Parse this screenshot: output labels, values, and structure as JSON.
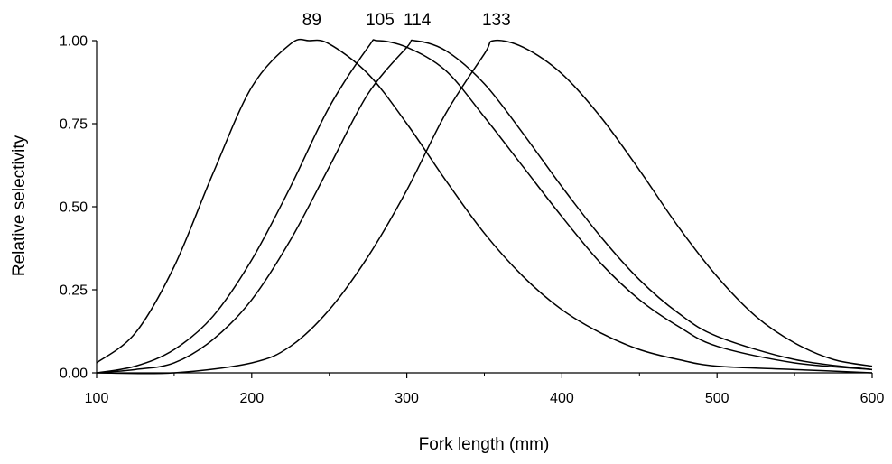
{
  "chart_data": {
    "type": "line",
    "title": "",
    "xlabel": "Fork length (mm)",
    "ylabel": "Relative selectivity",
    "xlim": [
      100,
      600
    ],
    "ylim": [
      0,
      1
    ],
    "x_ticks": [
      100,
      200,
      300,
      400,
      500,
      600
    ],
    "x_tick_labels": [
      "100",
      "200",
      "300",
      "400",
      "500",
      "600"
    ],
    "y_ticks": [
      0,
      0.25,
      0.5,
      0.75,
      1.0
    ],
    "y_tick_labels": [
      "0.00",
      "0.25",
      "0.50",
      "0.75",
      "1.00"
    ],
    "grid": false,
    "legend": "none",
    "line_color": "#000000",
    "series": [
      {
        "name": "89",
        "x": [
          100,
          125,
          150,
          175,
          200,
          225,
          237,
          250,
          275,
          300,
          325,
          350,
          375,
          400,
          425,
          450,
          475,
          500,
          550,
          600
        ],
        "y": [
          0.03,
          0.12,
          0.32,
          0.6,
          0.86,
          0.99,
          1.0,
          0.99,
          0.9,
          0.75,
          0.58,
          0.42,
          0.29,
          0.19,
          0.12,
          0.07,
          0.04,
          0.02,
          0.01,
          0.0
        ]
      },
      {
        "name": "105",
        "x": [
          100,
          125,
          150,
          175,
          200,
          225,
          250,
          275,
          281,
          300,
          325,
          350,
          375,
          400,
          425,
          450,
          475,
          500,
          550,
          600
        ],
        "y": [
          0.0,
          0.02,
          0.07,
          0.17,
          0.34,
          0.56,
          0.8,
          0.98,
          1.0,
          0.98,
          0.91,
          0.77,
          0.62,
          0.47,
          0.33,
          0.22,
          0.14,
          0.08,
          0.03,
          0.01
        ]
      },
      {
        "name": "114",
        "x": [
          100,
          125,
          150,
          175,
          200,
          225,
          250,
          275,
          300,
          305,
          325,
          350,
          375,
          400,
          425,
          450,
          475,
          500,
          550,
          600
        ],
        "y": [
          0.0,
          0.01,
          0.03,
          0.1,
          0.22,
          0.4,
          0.62,
          0.84,
          0.98,
          1.0,
          0.97,
          0.87,
          0.72,
          0.56,
          0.41,
          0.28,
          0.18,
          0.11,
          0.04,
          0.01
        ]
      },
      {
        "name": "133",
        "x": [
          100,
          150,
          200,
          225,
          250,
          275,
          300,
          325,
          350,
          356,
          375,
          400,
          425,
          450,
          475,
          500,
          525,
          550,
          575,
          600
        ],
        "y": [
          0.0,
          0.0,
          0.03,
          0.08,
          0.19,
          0.35,
          0.55,
          0.78,
          0.96,
          1.0,
          0.98,
          0.9,
          0.77,
          0.61,
          0.44,
          0.29,
          0.17,
          0.09,
          0.04,
          0.02
        ]
      }
    ]
  }
}
